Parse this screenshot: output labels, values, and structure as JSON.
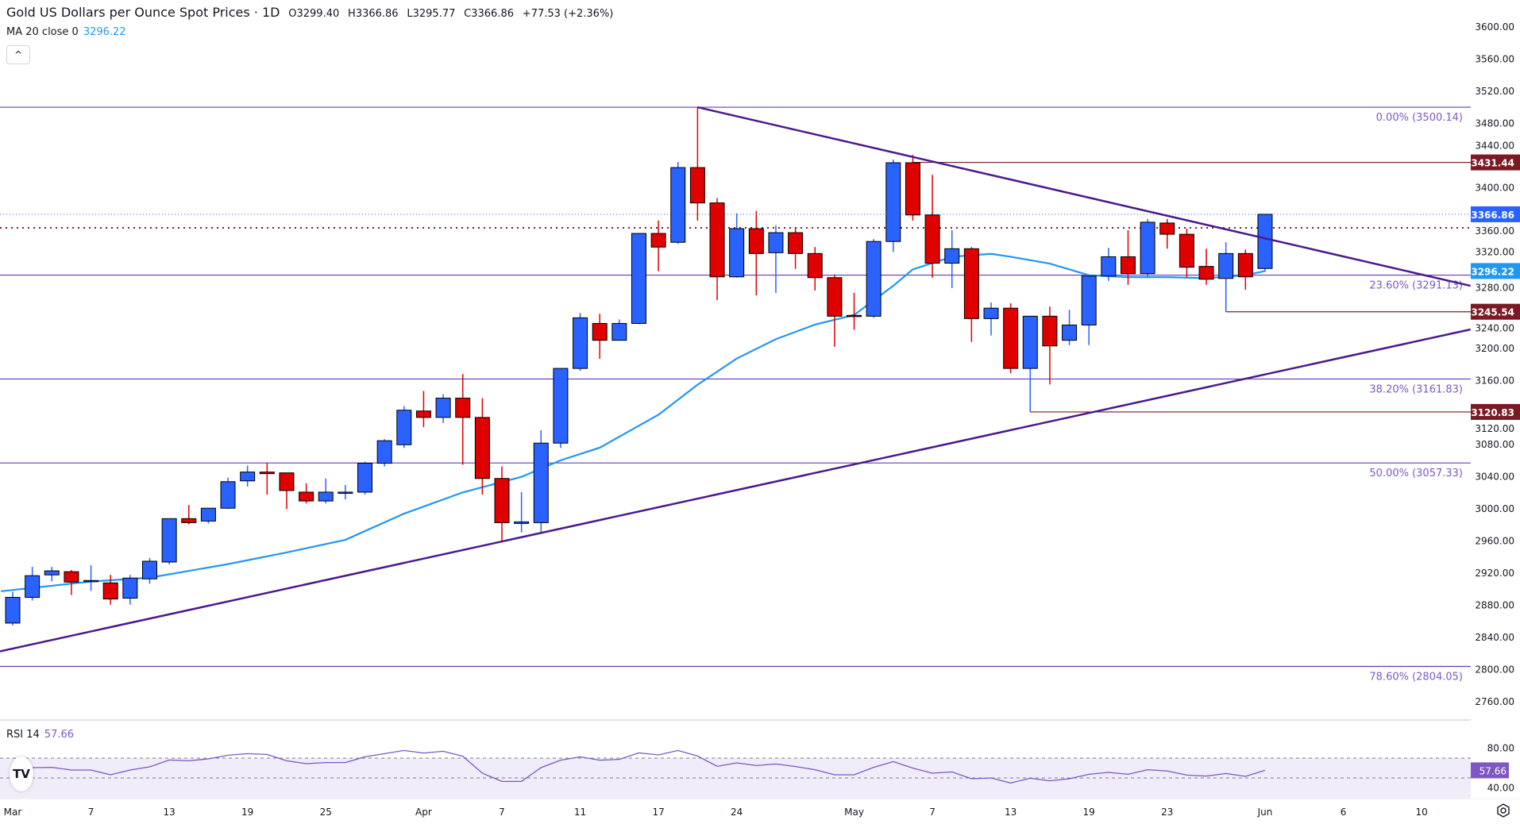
{
  "header": {
    "title": "Gold US Dollars per Ounce Spot Prices · 1D",
    "open": "O3299.40",
    "high": "H3366.86",
    "low": "L3295.77",
    "close": "C3366.86",
    "change": "+77.53 (+2.36%)",
    "ma_label": "MA 20 close 0",
    "ma_value": "3296.22",
    "collapse_icon": "chevron-up-icon",
    "collapse_glyph": "^"
  },
  "rsi_legend": {
    "label": "RSI 14",
    "value": "57.66"
  },
  "logo_text": "TV",
  "colors": {
    "up": "#2962ff",
    "down": "#e00000",
    "ma": "#2196f3",
    "fib": "#673ab7",
    "trend": "#4a1a8c",
    "support": "#7b1a24",
    "rsi": "#7e57c2",
    "rsi_fill": "#f0ecf9"
  },
  "chart_data": [
    {
      "type": "candlestick",
      "title": "Gold US Dollars per Ounce Spot Prices · 1D",
      "ylim": [
        2740,
        3620
      ],
      "y_ticks": [
        "3600.00",
        "3560.00",
        "3520.00",
        "3480.00",
        "3440.00",
        "3400.00",
        "3360.00",
        "3320.00",
        "3280.00",
        "3240.00",
        "3200.00",
        "3160.00",
        "3120.00",
        "3080.00",
        "3040.00",
        "3000.00",
        "2960.00",
        "2920.00",
        "2880.00",
        "2840.00",
        "2800.00",
        "2760.00"
      ],
      "x_ticks": [
        {
          "bar": 0,
          "label": "Mar"
        },
        {
          "bar": 4,
          "label": "7"
        },
        {
          "bar": 8,
          "label": "13"
        },
        {
          "bar": 12,
          "label": "19"
        },
        {
          "bar": 16,
          "label": "25"
        },
        {
          "bar": 21,
          "label": "Apr"
        },
        {
          "bar": 25,
          "label": "7"
        },
        {
          "bar": 29,
          "label": "11"
        },
        {
          "bar": 33,
          "label": "17"
        },
        {
          "bar": 37,
          "label": "24"
        },
        {
          "bar": 43,
          "label": "May"
        },
        {
          "bar": 47,
          "label": "7"
        },
        {
          "bar": 51,
          "label": "13"
        },
        {
          "bar": 55,
          "label": "19"
        },
        {
          "bar": 59,
          "label": "23"
        },
        {
          "bar": 64,
          "label": "Jun"
        },
        {
          "bar": 68,
          "label": "6"
        },
        {
          "bar": 72,
          "label": "10"
        }
      ],
      "ohlc": [
        [
          2858,
          2897,
          2855,
          2890
        ],
        [
          2890,
          2928,
          2886,
          2917
        ],
        [
          2918,
          2928,
          2910,
          2923
        ],
        [
          2922,
          2924,
          2893,
          2909
        ],
        [
          2910,
          2930,
          2898,
          2911
        ],
        [
          2908,
          2918,
          2881,
          2888
        ],
        [
          2889,
          2918,
          2881,
          2914
        ],
        [
          2913,
          2939,
          2907,
          2935
        ],
        [
          2934,
          2988,
          2931,
          2988
        ],
        [
          2988,
          3005,
          2981,
          2983
        ],
        [
          2985,
          3001,
          2982,
          3001
        ],
        [
          3001,
          3039,
          3000,
          3034
        ],
        [
          3035,
          3054,
          3028,
          3046
        ],
        [
          3046,
          3057,
          3018,
          3044
        ],
        [
          3045,
          3045,
          3000,
          3023
        ],
        [
          3021,
          3032,
          3007,
          3010
        ],
        [
          3010,
          3038,
          3007,
          3021
        ],
        [
          3020,
          3030,
          3012,
          3021
        ],
        [
          3021,
          3059,
          3018,
          3057
        ],
        [
          3057,
          3087,
          3053,
          3085
        ],
        [
          3080,
          3128,
          3076,
          3123
        ],
        [
          3122,
          3147,
          3102,
          3114
        ],
        [
          3114,
          3143,
          3107,
          3138
        ],
        [
          3138,
          3168,
          3055,
          3114
        ],
        [
          3114,
          3138,
          3018,
          3038
        ],
        [
          3038,
          3053,
          2959,
          2983
        ],
        [
          2982,
          3021,
          2971,
          2984
        ],
        [
          2983,
          3098,
          2971,
          3082
        ],
        [
          3082,
          3175,
          3076,
          3175
        ],
        [
          3175,
          3244,
          3172,
          3238
        ],
        [
          3231,
          3243,
          3187,
          3210
        ],
        [
          3210,
          3236,
          3210,
          3231
        ],
        [
          3231,
          3343,
          3230,
          3343
        ],
        [
          3343,
          3359,
          3296,
          3326
        ],
        [
          3332,
          3432,
          3330,
          3425
        ],
        [
          3425,
          3500.14,
          3359,
          3381
        ],
        [
          3381,
          3387,
          3260,
          3289
        ],
        [
          3289,
          3368,
          3288,
          3349
        ],
        [
          3349,
          3371,
          3266,
          3318
        ],
        [
          3319,
          3353,
          3269,
          3344
        ],
        [
          3344,
          3349,
          3299,
          3318
        ],
        [
          3318,
          3326,
          3272,
          3288
        ],
        [
          3288,
          3292,
          3202,
          3240
        ],
        [
          3241,
          3269,
          3223,
          3240
        ],
        [
          3240,
          3336,
          3238,
          3333
        ],
        [
          3333,
          3435,
          3320,
          3431
        ],
        [
          3431,
          3441,
          3359,
          3366
        ],
        [
          3366,
          3416,
          3288,
          3306
        ],
        [
          3306,
          3347,
          3275,
          3324
        ],
        [
          3324,
          3326,
          3208,
          3237
        ],
        [
          3237,
          3257,
          3216,
          3250
        ],
        [
          3250,
          3256,
          3169,
          3175
        ],
        [
          3175,
          3240,
          3120.83,
          3240
        ],
        [
          3240,
          3252,
          3155,
          3203
        ],
        [
          3210,
          3248,
          3204,
          3229
        ],
        [
          3229,
          3290,
          3204,
          3290
        ],
        [
          3290,
          3325,
          3284,
          3314
        ],
        [
          3314,
          3347,
          3279,
          3293
        ],
        [
          3293,
          3361,
          3289,
          3357
        ],
        [
          3356,
          3361,
          3324,
          3342
        ],
        [
          3342,
          3349,
          3288,
          3301
        ],
        [
          3302,
          3324,
          3279,
          3286
        ],
        [
          3287,
          3332,
          3245.54,
          3318
        ],
        [
          3318,
          3323,
          3273,
          3289
        ],
        [
          3299.4,
          3366.86,
          3295.77,
          3366.86
        ]
      ],
      "ma20": [
        [
          -0.6,
          2897.6
        ],
        [
          4,
          2909.7
        ],
        [
          7,
          2914.5
        ],
        [
          11,
          2931.4
        ],
        [
          14,
          2945.9
        ],
        [
          17,
          2961.6
        ],
        [
          20,
          2994.2
        ],
        [
          23,
          3020.7
        ],
        [
          26,
          3040.0
        ],
        [
          28,
          3060.6
        ],
        [
          30,
          3076.3
        ],
        [
          33,
          3117.3
        ],
        [
          35,
          3154.7
        ],
        [
          37,
          3187.3
        ],
        [
          39,
          3211.4
        ],
        [
          41,
          3229.5
        ],
        [
          43,
          3241.6
        ],
        [
          45,
          3277.8
        ],
        [
          46,
          3298.3
        ],
        [
          48,
          3314.0
        ],
        [
          50,
          3317.6
        ],
        [
          51,
          3314.0
        ],
        [
          53,
          3305.5
        ],
        [
          55,
          3291.0
        ],
        [
          57,
          3288.6
        ],
        [
          59,
          3288.6
        ],
        [
          61,
          3287.4
        ],
        [
          63,
          3291.0
        ],
        [
          64,
          3296.22
        ]
      ],
      "fib_levels": [
        {
          "price": 3500.14,
          "label": "0.00% (3500.14)"
        },
        {
          "price": 3291.13,
          "label": "23.60% (3291.13)"
        },
        {
          "price": 3161.83,
          "label": "38.20% (3161.83)"
        },
        {
          "price": 3057.33,
          "label": "50.00% (3057.33)"
        },
        {
          "price": 2804.05,
          "label": "78.60% (2804.05)"
        }
      ],
      "trendlines": [
        {
          "name": "descending-resistance",
          "from": [
            35,
            3500.14
          ],
          "to": [
            74.5,
            3277.8
          ]
        },
        {
          "name": "ascending-support",
          "from": [
            -0.65,
            2822.8
          ],
          "to": [
            74.5,
            3223.5
          ]
        }
      ],
      "horizontal_levels": [
        {
          "price": 3431.44,
          "label": "3431.44",
          "from_bar": 46,
          "anchor": null
        },
        {
          "price": 3245.54,
          "label": "3245.54",
          "from_bar": 62,
          "anchor": 3287
        },
        {
          "price": 3120.83,
          "label": "3120.83",
          "from_bar": 52,
          "anchor": 3175
        }
      ],
      "dotted_level": 3350,
      "last_price": {
        "price": 3366.86,
        "label": "3366.86"
      },
      "ma_price": {
        "price": 3296.22,
        "label": "3296.22"
      }
    },
    {
      "type": "line",
      "title": "RSI 14",
      "ylim": [
        30,
        90
      ],
      "y_ticks": [
        "80.00",
        "40.00"
      ],
      "bands": [
        70,
        50
      ],
      "values": [
        55.0,
        60.4,
        60.7,
        58.0,
        58.0,
        53.2,
        58.0,
        61.2,
        68.1,
        67.3,
        69.2,
        72.9,
        74.5,
        73.7,
        67.3,
        64.4,
        65.5,
        65.5,
        71.3,
        74.5,
        77.7,
        75.1,
        76.9,
        71.9,
        54.8,
        46.5,
        46.5,
        60.4,
        67.9,
        71.3,
        67.9,
        68.7,
        75.3,
        73.2,
        77.7,
        72.1,
        61.7,
        65.2,
        62.5,
        64.1,
        61.5,
        58.3,
        53.2,
        53.2,
        60.7,
        66.5,
        59.9,
        54.8,
        56.1,
        49.2,
        50.0,
        44.9,
        49.7,
        47.1,
        49.2,
        53.7,
        55.6,
        53.7,
        58.3,
        57.0,
        52.9,
        51.9,
        54.5,
        51.6,
        57.66
      ],
      "last_label": "57.66"
    }
  ]
}
